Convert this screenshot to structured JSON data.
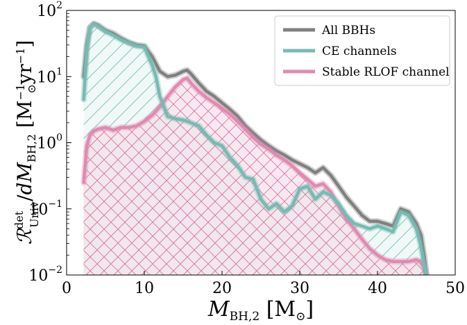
{
  "chart_data": {
    "type": "line",
    "xlabel": "M_BH,2 [M_⊙]",
    "ylabel": "R^det_Univ / dM_BH,2 [M_⊙^−1 yr^−1]",
    "xlim": [
      0,
      50
    ],
    "ylim": [
      0.01,
      100
    ],
    "yscale": "log",
    "x_ticks": [
      0,
      10,
      20,
      30,
      40,
      50
    ],
    "x_tick_labels": [
      "0",
      "10",
      "20",
      "30",
      "40",
      "50"
    ],
    "y_ticks": [
      0.01,
      0.1,
      1,
      10,
      100
    ],
    "y_tick_labels": [
      {
        "base": "10",
        "exp": "−2"
      },
      {
        "base": "10",
        "exp": "−1"
      },
      {
        "base": "10",
        "exp": "0"
      },
      {
        "base": "10",
        "exp": "1"
      },
      {
        "base": "10",
        "exp": "2"
      }
    ],
    "legend_position": "top-right",
    "grid": false,
    "series": [
      {
        "name": "All BBHs",
        "color": "#808080",
        "x": [
          2.2,
          2.6,
          3.0,
          3.5,
          4.0,
          5.0,
          6.0,
          7.0,
          8.0,
          9.0,
          10.0,
          11.0,
          12.0,
          13.0,
          14.0,
          15.0,
          15.5,
          16.0,
          17.0,
          18.0,
          19.0,
          20.0,
          21.0,
          22.0,
          23.0,
          24.0,
          25.0,
          26.0,
          27.0,
          28.0,
          29.0,
          30.0,
          31.0,
          32.0,
          33.0,
          34.0,
          35.0,
          36.0,
          37.0,
          38.0,
          39.0,
          40.0,
          41.0,
          42.0,
          43.0,
          44.0,
          45.0,
          45.6,
          46.0,
          46.3
        ],
        "y": [
          10,
          30,
          55,
          63,
          60,
          50,
          45,
          38,
          33,
          30,
          29,
          20,
          12,
          10,
          10.5,
          12,
          12.5,
          11,
          8,
          6,
          5,
          4,
          3.2,
          2.5,
          1.8,
          1.4,
          1.1,
          0.9,
          0.75,
          0.65,
          0.55,
          0.48,
          0.42,
          0.35,
          0.42,
          0.32,
          0.22,
          0.15,
          0.11,
          0.08,
          0.065,
          0.065,
          0.06,
          0.055,
          0.1,
          0.09,
          0.06,
          0.04,
          0.02,
          0.01
        ]
      },
      {
        "name": "CE channels",
        "color": "#76bbb2",
        "x": [
          2.2,
          2.6,
          3.0,
          3.5,
          4.0,
          5.0,
          6.0,
          7.0,
          8.0,
          9.0,
          10.0,
          11.0,
          11.5,
          12.0,
          13.0,
          14.0,
          15.0,
          16.0,
          17.0,
          18.0,
          19.0,
          20.0,
          21.0,
          22.0,
          23.0,
          24.0,
          25.0,
          26.0,
          27.0,
          28.0,
          29.0,
          30.0,
          31.0,
          32.0,
          33.0,
          34.0,
          35.0,
          36.0,
          37.0,
          38.0,
          39.0,
          40.0,
          41.0,
          42.0,
          43.0,
          44.0,
          45.0,
          45.5,
          46.0,
          46.2
        ],
        "y": [
          4.5,
          25,
          55,
          62,
          58,
          48,
          42,
          36,
          32,
          29,
          28,
          15,
          10,
          5,
          2.5,
          2.3,
          2.2,
          2.0,
          1.8,
          1.3,
          1.0,
          0.9,
          0.6,
          0.45,
          0.3,
          0.28,
          0.14,
          0.1,
          0.12,
          0.09,
          0.11,
          0.2,
          0.22,
          0.14,
          0.18,
          0.16,
          0.12,
          0.08,
          0.06,
          0.055,
          0.05,
          0.055,
          0.05,
          0.045,
          0.09,
          0.08,
          0.05,
          0.03,
          0.015,
          0.01
        ]
      },
      {
        "name": "Stable RLOF channel",
        "color": "#e08ab1",
        "x": [
          2.2,
          2.6,
          3.0,
          3.5,
          4.0,
          5.0,
          6.0,
          7.0,
          8.0,
          9.0,
          10.0,
          11.0,
          12.0,
          13.0,
          14.0,
          15.0,
          15.5,
          16.0,
          17.0,
          18.0,
          19.0,
          20.0,
          21.0,
          22.0,
          23.0,
          24.0,
          25.0,
          26.0,
          27.0,
          28.0,
          29.0,
          30.0,
          31.0,
          32.0,
          33.0,
          34.0,
          35.0,
          36.0,
          37.0,
          38.0,
          39.0,
          40.0,
          41.0,
          42.0,
          43.0,
          44.0,
          45.0,
          45.5,
          46.0,
          46.3
        ],
        "y": [
          0.25,
          0.9,
          1.3,
          1.5,
          1.6,
          1.7,
          1.55,
          1.7,
          1.7,
          1.8,
          2.1,
          2.6,
          3.5,
          5,
          7,
          9,
          9.5,
          8,
          6,
          4.8,
          4,
          3.3,
          2.7,
          2.1,
          1.6,
          1.2,
          0.95,
          0.8,
          0.65,
          0.55,
          0.45,
          0.35,
          0.28,
          0.22,
          0.24,
          0.18,
          0.11,
          0.07,
          0.05,
          0.035,
          0.025,
          0.02,
          0.017,
          0.016,
          0.016,
          0.016,
          0.017,
          0.016,
          0.013,
          0.01
        ]
      }
    ]
  }
}
